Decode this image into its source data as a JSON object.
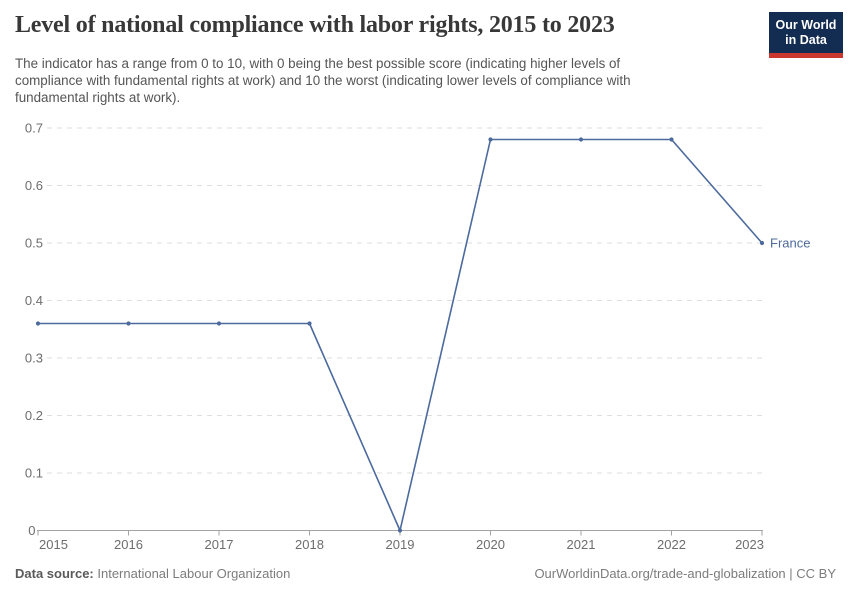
{
  "header": {
    "title": "Level of national compliance with labor rights, 2015 to 2023",
    "subtitle_lines": [
      "The indicator has a range from 0 to 10, with 0 being the best possible score (indicating higher levels of",
      "compliance with fundamental rights at work) and 10 the worst (indicating lower levels of compliance with",
      "fundamental rights at work)."
    ],
    "logo": {
      "line1": "Our World",
      "line2": "in Data",
      "bg_color": "#132c52",
      "accent_color": "#c9372e"
    }
  },
  "chart_data": {
    "type": "line",
    "title": "Level of national compliance with labor rights, 2015 to 2023",
    "x_ticks": [
      2015,
      2016,
      2017,
      2018,
      2019,
      2020,
      2021,
      2022,
      2023
    ],
    "y_ticks": [
      0,
      0.1,
      0.2,
      0.3,
      0.4,
      0.5,
      0.6,
      0.7
    ],
    "ylim": [
      0,
      0.7
    ],
    "grid": "horizontal-dashed",
    "legend_position": "end-of-line-label",
    "series": [
      {
        "name": "France",
        "color": "#4C6A9C",
        "x": [
          2015,
          2016,
          2017,
          2018,
          2019,
          2020,
          2021,
          2022,
          2023
        ],
        "values": [
          0.36,
          0.36,
          0.36,
          0.36,
          0,
          0.68,
          0.68,
          0.68,
          0.5
        ]
      }
    ],
    "colors": {
      "grid": "#dedede",
      "axis": "#a3a3a3",
      "tick_label": "#6d6d6d"
    }
  },
  "footer": {
    "source_label": "Data source:",
    "source_value": "International Labour Organization",
    "credit": "OurWorldinData.org/trade-and-globalization | CC BY"
  }
}
